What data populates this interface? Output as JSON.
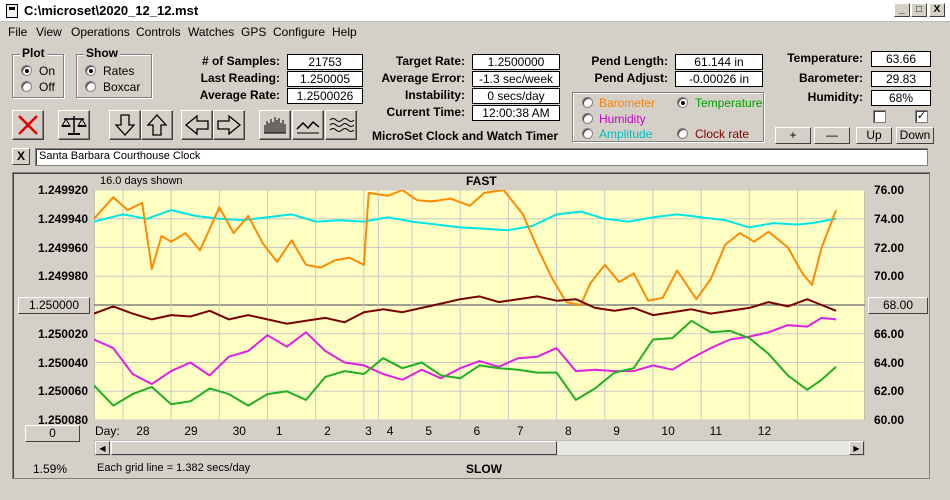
{
  "window": {
    "title": "C:\\microset\\2020_12_12.mst",
    "minimize": "_",
    "maximize": "□",
    "close": "X"
  },
  "menu": [
    "File",
    "View",
    "Operations",
    "Controls",
    "Watches",
    "GPS",
    "Configure",
    "Help"
  ],
  "plot_group": {
    "title": "Plot",
    "options": [
      "On",
      "Off"
    ],
    "selected": 0
  },
  "show_group": {
    "title": "Show",
    "options": [
      "Rates",
      "Boxcar"
    ],
    "selected": 0
  },
  "stats": [
    {
      "label": "# of Samples:",
      "value": "21753"
    },
    {
      "label": "Last Reading:",
      "value": "1.250005"
    },
    {
      "label": "Average Rate:",
      "value": "1.2500026"
    }
  ],
  "rates": [
    {
      "label": "Target Rate:",
      "value": "1.2500000"
    },
    {
      "label": "Average Error:",
      "value": "-1.3 sec/week"
    },
    {
      "label": "Instability:",
      "value": "0 secs/day"
    },
    {
      "label": "Current Time:",
      "value": "12:00:38 AM"
    }
  ],
  "app_caption": "MicroSet Clock and Watch Timer",
  "pendulum": [
    {
      "label": "Pend Length:",
      "value": "61.144 in"
    },
    {
      "label": "Pend Adjust:",
      "value": "-0.00026 in"
    }
  ],
  "series_select": {
    "options": [
      {
        "label": "Barometer",
        "color": "#ff8000"
      },
      {
        "label": "Temperature",
        "color": "#00a000"
      },
      {
        "label": "Humidity",
        "color": "#cc00cc"
      },
      {
        "label": "Amplitude",
        "color": "#00c0c0"
      },
      {
        "label": "Clock rate",
        "color": "#800000"
      }
    ],
    "selected": 1
  },
  "environment": [
    {
      "label": "Temperature:",
      "value": "63.66"
    },
    {
      "label": "Barometer:",
      "value": "29.83"
    },
    {
      "label": "Humidity:",
      "value": "68%"
    }
  ],
  "checkboxes": [
    false,
    true
  ],
  "scale_buttons": [
    "+",
    "—",
    "Up",
    "Down"
  ],
  "clock_name": "Santa Barbara Courthouse Clock",
  "clear_name": "X",
  "chart_header": {
    "days_shown": "16.0 days shown",
    "fast": "FAST",
    "slow": "SLOW"
  },
  "left_center_button": "1.250000",
  "right_center_button": "68.00",
  "offset_button": "0",
  "day_label": "Day:",
  "grid_note": "Each grid line = 1.382 secs/day",
  "status_pct": "1.59%",
  "chart_data": {
    "type": "line",
    "y_left": {
      "ticks": [
        "1.249920",
        "1.249940",
        "1.249960",
        "1.249980",
        "1.250000",
        "1.250020",
        "1.250040",
        "1.250060",
        "1.250080"
      ],
      "range": [
        1.24992,
        1.25008
      ],
      "inverted": true
    },
    "y_right": {
      "ticks": [
        "76.00",
        "74.00",
        "72.00",
        "70.00",
        "68.00",
        "66.00",
        "64.00",
        "62.00",
        "60.00"
      ],
      "range": [
        60,
        76
      ]
    },
    "x_days": [
      "28",
      "29",
      "30",
      "1",
      "2",
      "3",
      "4",
      "5",
      "6",
      "7",
      "8",
      "9",
      "10",
      "11",
      "12"
    ],
    "x_range": [
      27.4,
      43.4
    ],
    "day_ticks": [
      28,
      29,
      30,
      31,
      32,
      33,
      33.3,
      34,
      35,
      36,
      37,
      38,
      39,
      40,
      41,
      42
    ],
    "series": [
      {
        "color": "#00e5e5",
        "x": [
          27.4,
          28,
          28.5,
          29,
          29.5,
          30,
          30.5,
          31,
          31.5,
          32,
          32.5,
          33,
          33.5,
          34,
          34.5,
          35,
          35.5,
          36,
          36.5,
          37,
          37.5,
          38,
          38.5,
          39,
          39.5,
          40,
          40.5,
          41,
          41.5,
          42,
          42.3,
          42.8
        ],
        "y": [
          73.8,
          74.3,
          74.0,
          74.6,
          74.2,
          74.0,
          73.9,
          74.1,
          74.3,
          73.8,
          73.9,
          73.8,
          74.1,
          73.8,
          73.6,
          73.4,
          73.3,
          73.2,
          73.5,
          74.3,
          74.5,
          74.0,
          73.8,
          74.1,
          74.3,
          74.1,
          73.9,
          73.4,
          73.7,
          73.6,
          73.7,
          74.0
        ]
      },
      {
        "color": "#ff8a00",
        "x": [
          27.4,
          27.8,
          28.1,
          28.4,
          28.6,
          28.8,
          29.0,
          29.3,
          29.6,
          30.0,
          30.3,
          30.6,
          30.9,
          31.2,
          31.5,
          31.8,
          32.1,
          32.4,
          32.7,
          33.0,
          33.1,
          33.5,
          33.8,
          34.1,
          34.4,
          34.8,
          35.2,
          35.5,
          35.9,
          36.3,
          36.6,
          36.9,
          37.2,
          37.5,
          37.7,
          38.0,
          38.3,
          38.6,
          38.9,
          39.2,
          39.5,
          39.9,
          40.2,
          40.5,
          40.8,
          41.1,
          41.4,
          41.8,
          42.1,
          42.3,
          42.5,
          42.8
        ],
        "y": [
          74.0,
          75.5,
          74.6,
          75.1,
          70.5,
          72.8,
          72.4,
          73.0,
          71.8,
          74.8,
          73.0,
          74.2,
          72.3,
          71.0,
          72.5,
          70.8,
          70.6,
          71.1,
          71.3,
          70.8,
          75.8,
          75.6,
          76.0,
          75.3,
          75.2,
          75.4,
          74.9,
          75.8,
          76.0,
          74.3,
          72.0,
          69.9,
          68.2,
          68.0,
          69.5,
          70.8,
          69.6,
          70.2,
          68.3,
          68.5,
          70.4,
          68.4,
          69.8,
          72.2,
          73.0,
          72.4,
          73.1,
          72.0,
          70.2,
          69.4,
          72.0,
          74.6
        ]
      },
      {
        "color": "#7a0000",
        "x": [
          27.4,
          27.8,
          28.2,
          28.6,
          29.0,
          29.4,
          29.8,
          30.2,
          30.6,
          31.0,
          31.4,
          31.8,
          32.2,
          32.6,
          33.0,
          33.4,
          33.8,
          34.2,
          34.6,
          35.0,
          35.4,
          35.8,
          36.2,
          36.6,
          37.0,
          37.4,
          37.8,
          38.2,
          38.6,
          39.0,
          39.4,
          39.8,
          40.2,
          40.6,
          41.0,
          41.4,
          41.8,
          42.2,
          42.5,
          42.8
        ],
        "y": [
          67.4,
          67.9,
          67.4,
          67.0,
          67.3,
          67.2,
          67.6,
          67.0,
          67.3,
          67.0,
          66.7,
          66.9,
          67.1,
          66.8,
          67.5,
          67.7,
          67.5,
          67.8,
          68.1,
          68.4,
          68.6,
          68.2,
          68.4,
          68.6,
          68.3,
          68.4,
          67.8,
          67.6,
          67.8,
          67.3,
          67.5,
          67.7,
          67.4,
          67.6,
          67.8,
          68.2,
          67.9,
          68.4,
          68.0,
          67.6
        ]
      },
      {
        "color": "#e020e0",
        "x": [
          27.4,
          27.8,
          28.2,
          28.6,
          29.0,
          29.4,
          29.8,
          30.2,
          30.6,
          31.0,
          31.4,
          31.8,
          32.2,
          32.6,
          33.0,
          33.4,
          33.8,
          34.2,
          34.6,
          35.0,
          35.4,
          35.8,
          36.2,
          36.6,
          37.0,
          37.4,
          37.8,
          38.2,
          38.6,
          39.0,
          39.4,
          39.8,
          40.2,
          40.6,
          41.0,
          41.4,
          41.8,
          42.2,
          42.5,
          42.8
        ],
        "y": [
          65.6,
          65.0,
          63.2,
          62.5,
          63.4,
          64.0,
          63.1,
          64.4,
          64.8,
          65.9,
          65.1,
          66.1,
          64.8,
          64.0,
          63.8,
          63.2,
          62.8,
          63.5,
          62.9,
          63.6,
          64.1,
          63.7,
          64.3,
          64.4,
          65.0,
          63.4,
          63.5,
          63.4,
          63.4,
          63.8,
          63.5,
          64.3,
          65.0,
          65.6,
          65.8,
          66.1,
          66.6,
          66.5,
          67.1,
          67.0
        ]
      },
      {
        "color": "#20b020",
        "x": [
          27.4,
          27.8,
          28.2,
          28.6,
          29.0,
          29.4,
          29.8,
          30.2,
          30.6,
          31.0,
          31.4,
          31.8,
          32.2,
          32.6,
          33.0,
          33.4,
          33.8,
          34.2,
          34.6,
          35.0,
          35.4,
          35.8,
          36.2,
          36.6,
          37.0,
          37.4,
          37.8,
          38.2,
          38.6,
          39.0,
          39.4,
          39.8,
          40.2,
          40.6,
          41.0,
          41.4,
          41.8,
          42.2,
          42.5,
          42.8
        ],
        "y": [
          62.4,
          61.0,
          61.8,
          62.3,
          61.1,
          61.3,
          62.2,
          61.8,
          61.0,
          61.8,
          62.0,
          61.4,
          63.0,
          63.4,
          63.2,
          64.3,
          63.6,
          64.0,
          63.1,
          62.9,
          63.8,
          63.6,
          63.5,
          63.3,
          63.3,
          61.4,
          62.2,
          63.3,
          63.6,
          65.6,
          65.7,
          66.9,
          66.1,
          66.2,
          65.7,
          64.6,
          63.1,
          62.1,
          62.8,
          63.7
        ]
      }
    ]
  }
}
